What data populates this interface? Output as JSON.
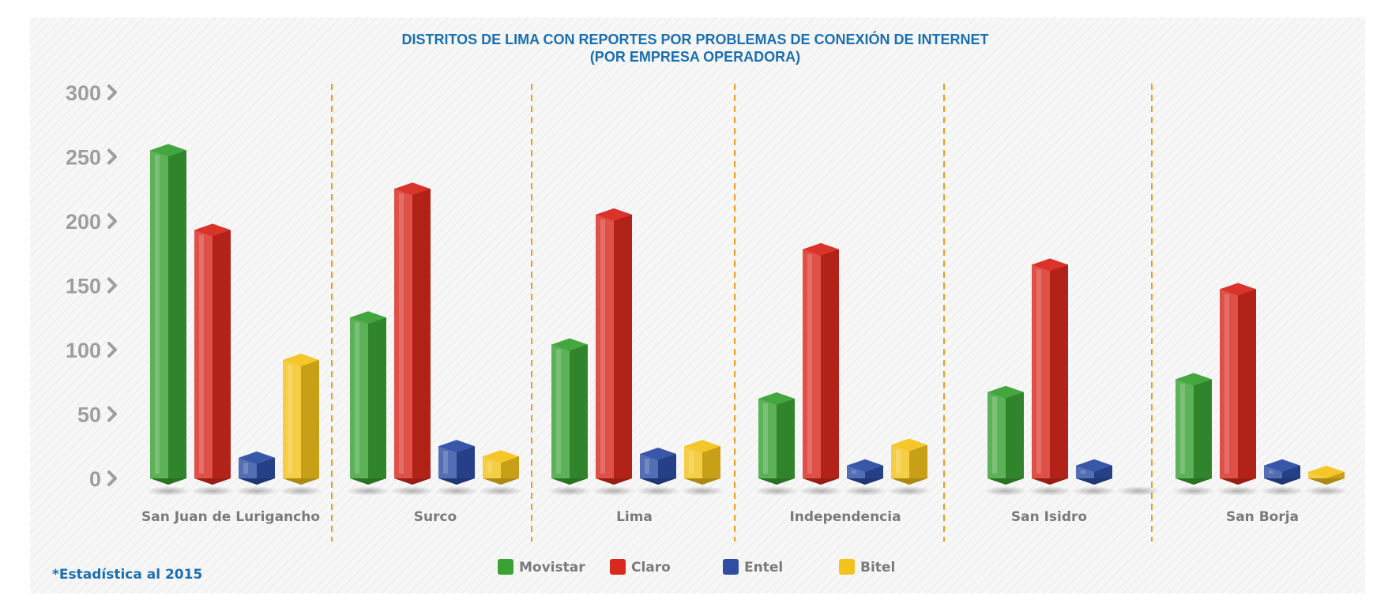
{
  "chart_data": {
    "type": "bar",
    "title": "DISTRITOS DE LIMA CON REPORTES POR PROBLEMAS DE CONEXIÓN DE INTERNET",
    "subtitle": "(POR EMPRESA OPERADORA)",
    "categories": [
      "San Juan de Lurigancho",
      "Surco",
      "Lima",
      "Independencia",
      "San Isidro",
      "San Borja"
    ],
    "series": [
      {
        "name": "Movistar",
        "color": "#3aa135",
        "values": [
          255,
          125,
          104,
          62,
          67,
          77
        ]
      },
      {
        "name": "Claro",
        "color": "#d8291f",
        "values": [
          193,
          225,
          205,
          178,
          166,
          147
        ]
      },
      {
        "name": "Entel",
        "color": "#2d4ea3",
        "values": [
          16,
          25,
          19,
          10,
          10,
          10
        ]
      },
      {
        "name": "Bitel",
        "color": "#f3c31d",
        "values": [
          92,
          17,
          25,
          26,
          0,
          5
        ]
      }
    ],
    "yticks": [
      "0",
      "50",
      "100",
      "150",
      "200",
      "250",
      "300"
    ],
    "ylim": [
      0,
      300
    ],
    "xlabel": "",
    "ylabel": "",
    "legend_position": "bottom",
    "grid": false
  },
  "footnote": "*Estadística al 2015"
}
